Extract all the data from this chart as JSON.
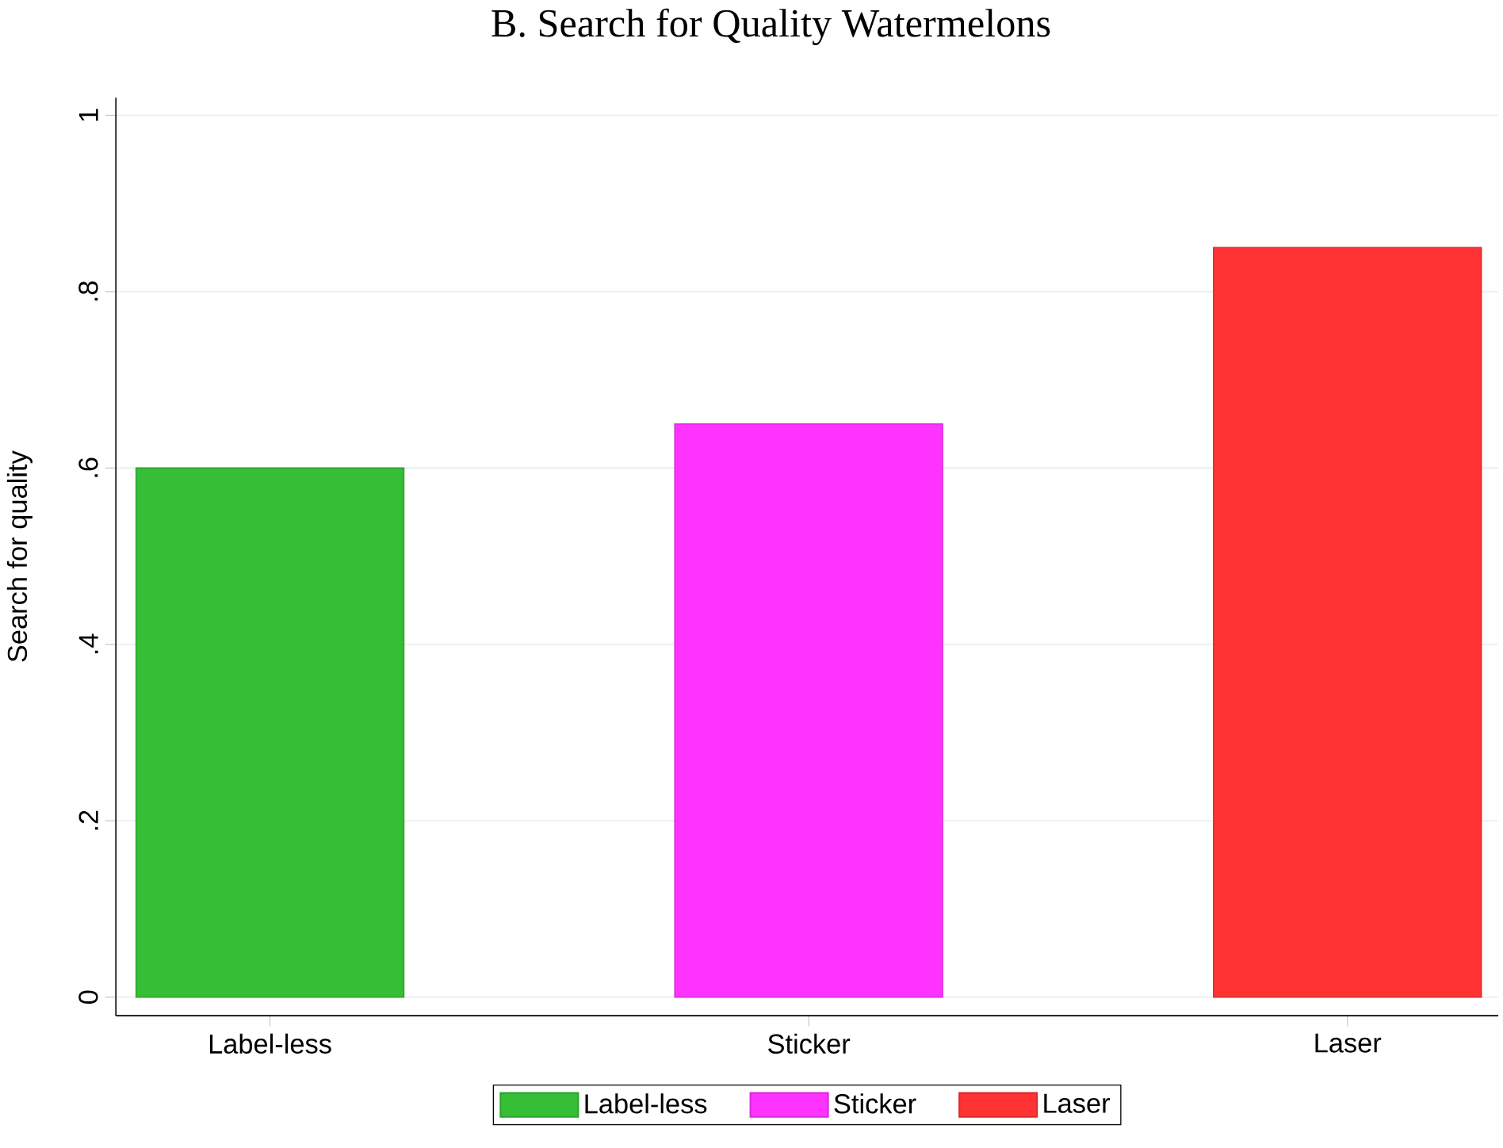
{
  "chart_data": {
    "type": "bar",
    "title": "B. Search for Quality Watermelons",
    "ylabel": "Search for quality",
    "categories": [
      "Label-less",
      "Sticker",
      "Laser"
    ],
    "series": [
      {
        "name": "Label-less",
        "color": "#36bf36",
        "values": [
          0.6,
          null,
          null
        ]
      },
      {
        "name": "Sticker",
        "color": "#ff33ff",
        "values": [
          null,
          0.65,
          null
        ]
      },
      {
        "name": "Laser",
        "color": "#ff3333",
        "values": [
          null,
          null,
          0.85
        ]
      }
    ],
    "ylim": [
      -0.021,
      1.02
    ],
    "yticks": [
      {
        "value": 0,
        "label": "0"
      },
      {
        "value": 0.2,
        "label": ".2"
      },
      {
        "value": 0.4,
        "label": ".4"
      },
      {
        "value": 0.6,
        "label": ".6"
      },
      {
        "value": 0.8,
        "label": ".8"
      },
      {
        "value": 1,
        "label": "1"
      }
    ],
    "grid": "y",
    "legend": "bottom"
  }
}
